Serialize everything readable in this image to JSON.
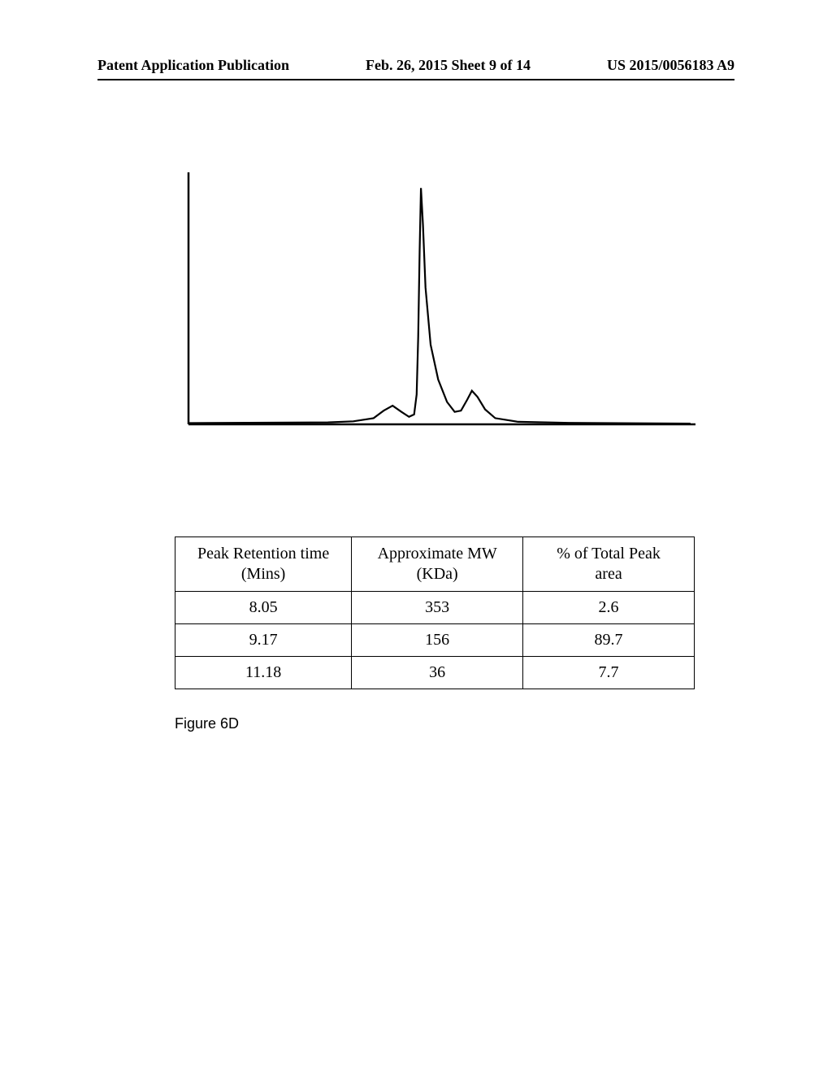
{
  "header": {
    "left": "Patent Application Publication",
    "center": "Feb. 26, 2015  Sheet 9 of 14",
    "right": "US 2015/0056183 A9"
  },
  "chromatogram": {
    "type": "line",
    "stroke_color": "#000000",
    "stroke_width": 2.2,
    "background_color": "#ffffff",
    "axis_color": "#000000",
    "axis_width": 2.5,
    "xlim": [
      0,
      20
    ],
    "ylim": [
      0,
      100
    ],
    "points": [
      [
        0.0,
        0.5
      ],
      [
        5.5,
        0.8
      ],
      [
        6.5,
        1.2
      ],
      [
        7.3,
        2.5
      ],
      [
        7.7,
        5.5
      ],
      [
        8.05,
        7.5
      ],
      [
        8.4,
        5.0
      ],
      [
        8.7,
        3.0
      ],
      [
        8.9,
        4.0
      ],
      [
        9.0,
        12.0
      ],
      [
        9.06,
        35.0
      ],
      [
        9.12,
        70.0
      ],
      [
        9.17,
        95.0
      ],
      [
        9.25,
        80.0
      ],
      [
        9.35,
        55.0
      ],
      [
        9.55,
        32.0
      ],
      [
        9.85,
        18.0
      ],
      [
        10.2,
        9.0
      ],
      [
        10.5,
        5.0
      ],
      [
        10.75,
        5.5
      ],
      [
        11.0,
        10.0
      ],
      [
        11.18,
        13.5
      ],
      [
        11.4,
        11.0
      ],
      [
        11.7,
        6.0
      ],
      [
        12.1,
        2.5
      ],
      [
        13.0,
        1.0
      ],
      [
        15.0,
        0.6
      ],
      [
        19.8,
        0.3
      ]
    ]
  },
  "peaks_table": {
    "columns": [
      {
        "label_line1": "Peak Retention time",
        "label_line2": "(Mins)",
        "width_pct": 34
      },
      {
        "label_line1": "Approximate MW",
        "label_line2": "(KDa)",
        "width_pct": 33
      },
      {
        "label_line1": "% of Total Peak",
        "label_line2": "area",
        "width_pct": 33
      }
    ],
    "rows": [
      [
        "8.05",
        "353",
        "2.6"
      ],
      [
        "9.17",
        "156",
        "89.7"
      ],
      [
        "11.18",
        "36",
        "7.7"
      ]
    ]
  },
  "figure_label": "Figure 6D"
}
